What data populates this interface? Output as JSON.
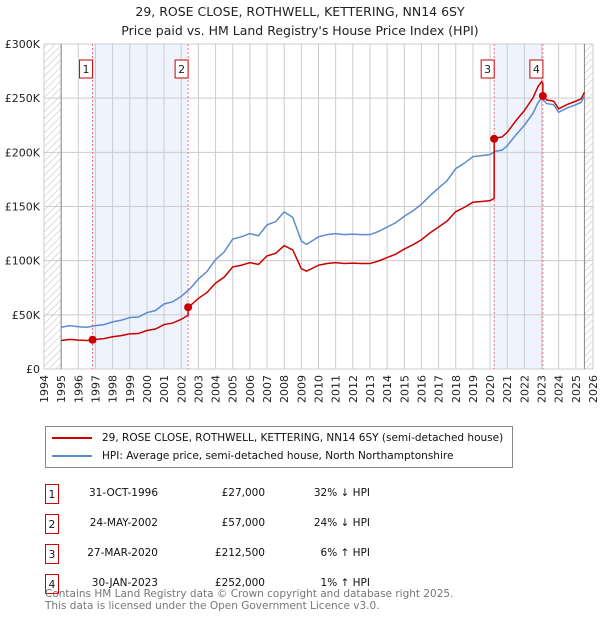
{
  "chart_data": {
    "type": "line",
    "title": "29, ROSE CLOSE, ROTHWELL, KETTERING, NN14 6SY",
    "subtitle": "Price paid vs. HM Land Registry's House Price Index (HPI)",
    "xlim": [
      1994,
      2026
    ],
    "ylim": [
      0,
      300000
    ],
    "y_ticks": [
      {
        "v": 0,
        "label": "£0"
      },
      {
        "v": 50000,
        "label": "£50K"
      },
      {
        "v": 100000,
        "label": "£100K"
      },
      {
        "v": 150000,
        "label": "£150K"
      },
      {
        "v": 200000,
        "label": "£200K"
      },
      {
        "v": 250000,
        "label": "£250K"
      },
      {
        "v": 300000,
        "label": "£300K"
      }
    ],
    "x_ticks": [
      1994,
      1995,
      1996,
      1997,
      1998,
      1999,
      2000,
      2001,
      2002,
      2003,
      2004,
      2005,
      2006,
      2007,
      2008,
      2009,
      2010,
      2011,
      2012,
      2013,
      2014,
      2015,
      2016,
      2017,
      2018,
      2019,
      2020,
      2021,
      2022,
      2023,
      2024,
      2025,
      2026
    ],
    "hpi_series": {
      "name": "HPI: Average price, semi-detached house, North Northamptonshire",
      "color": "#5b8bd0",
      "x": [
        1995,
        1995.5,
        1996,
        1996.5,
        1997,
        1997.5,
        1998,
        1998.5,
        1999,
        1999.5,
        2000,
        2000.5,
        2001,
        2001.5,
        2002,
        2002.5,
        2003,
        2003.5,
        2004,
        2004.5,
        2005,
        2005.5,
        2006,
        2006.5,
        2007,
        2007.5,
        2008,
        2008.5,
        2009,
        2009.3,
        2009.7,
        2010,
        2010.5,
        2011,
        2011.5,
        2012,
        2012.5,
        2013,
        2013.5,
        2014,
        2014.5,
        2015,
        2015.5,
        2016,
        2016.5,
        2017,
        2017.5,
        2018,
        2018.5,
        2019,
        2019.5,
        2020,
        2020.3,
        2020.7,
        2021,
        2021.5,
        2022,
        2022.5,
        2022.8,
        2023,
        2023.3,
        2023.7,
        2024,
        2024.5,
        2025,
        2025.3,
        2025.5
      ],
      "y": [
        38500,
        40000,
        39000,
        38500,
        40000,
        41000,
        43500,
        45000,
        47500,
        48000,
        52000,
        54000,
        60000,
        62000,
        67000,
        74000,
        83000,
        90000,
        101000,
        108000,
        120000,
        122000,
        125000,
        123000,
        133000,
        136000,
        145000,
        140000,
        118000,
        115000,
        119000,
        122000,
        124000,
        125000,
        124000,
        124500,
        124000,
        124000,
        127000,
        131000,
        135000,
        141000,
        146000,
        152000,
        160000,
        167000,
        174000,
        185000,
        190000,
        196000,
        197000,
        198000,
        201000,
        202000,
        206000,
        216000,
        225000,
        236000,
        246000,
        250000,
        245000,
        244000,
        237000,
        241000,
        244000,
        246000,
        252000
      ]
    },
    "price_series": {
      "name": "29, ROSE CLOSE, ROTHWELL, KETTERING, NN14 6SY (semi-detached house)",
      "color": "#cc0000"
    },
    "sales": [
      {
        "n": "1",
        "date": "31-OCT-1996",
        "x": 1996.83,
        "price": 27000,
        "price_label": "£27,000",
        "hpi": "32% ↓ HPI"
      },
      {
        "n": "2",
        "date": "24-MAY-2002",
        "x": 2002.4,
        "price": 57000,
        "price_label": "£57,000",
        "hpi": "24% ↓ HPI"
      },
      {
        "n": "3",
        "date": "27-MAR-2020",
        "x": 2020.24,
        "price": 212500,
        "price_label": "£212,500",
        "hpi": "6% ↑ HPI"
      },
      {
        "n": "4",
        "date": "30-JAN-2023",
        "x": 2023.08,
        "price": 252000,
        "price_label": "£252,000",
        "hpi": "1% ↑ HPI"
      }
    ],
    "hatched_before": 1995,
    "hatched_after": 2025.5
  },
  "footer": [
    "Contains HM Land Registry data © Crown copyright and database right 2025.",
    "This data is licensed under the Open Government Licence v3.0."
  ]
}
